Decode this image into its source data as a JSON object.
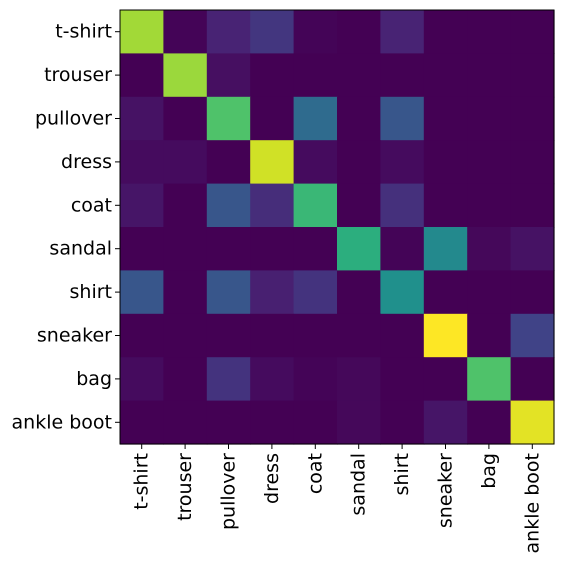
{
  "chart_data": {
    "type": "heatmap",
    "title": "",
    "xlabel": "",
    "ylabel": "",
    "colormap": "viridis",
    "value_range": [
      0,
      1
    ],
    "grid": false,
    "legend": "none",
    "x_categories": [
      "t-shirt",
      "trouser",
      "pullover",
      "dress",
      "coat",
      "sandal",
      "shirt",
      "sneaker",
      "bag",
      "ankle boot"
    ],
    "y_categories": [
      "t-shirt",
      "trouser",
      "pullover",
      "dress",
      "coat",
      "sandal",
      "shirt",
      "sneaker",
      "bag",
      "ankle boot"
    ],
    "values": [
      [
        0.86,
        0.01,
        0.1,
        0.16,
        0.01,
        0.0,
        0.1,
        0.0,
        0.0,
        0.0
      ],
      [
        0.0,
        0.85,
        0.04,
        0.0,
        0.0,
        0.0,
        0.0,
        0.0,
        0.0,
        0.0
      ],
      [
        0.05,
        0.0,
        0.72,
        0.0,
        0.35,
        0.0,
        0.27,
        0.0,
        0.0,
        0.0
      ],
      [
        0.03,
        0.03,
        0.0,
        0.93,
        0.03,
        0.0,
        0.03,
        0.0,
        0.0,
        0.0
      ],
      [
        0.06,
        0.0,
        0.27,
        0.13,
        0.67,
        0.0,
        0.14,
        0.0,
        0.0,
        0.0
      ],
      [
        0.0,
        0.0,
        0.0,
        0.0,
        0.0,
        0.63,
        0.01,
        0.47,
        0.02,
        0.05
      ],
      [
        0.27,
        0.0,
        0.27,
        0.09,
        0.15,
        0.0,
        0.5,
        0.0,
        0.0,
        0.0
      ],
      [
        0.0,
        0.0,
        0.0,
        0.0,
        0.0,
        0.0,
        0.0,
        1.0,
        0.0,
        0.2
      ],
      [
        0.03,
        0.0,
        0.15,
        0.03,
        0.01,
        0.02,
        0.0,
        0.0,
        0.72,
        0.0
      ],
      [
        0.0,
        0.0,
        0.0,
        0.0,
        0.0,
        0.02,
        0.0,
        0.06,
        0.0,
        0.96
      ]
    ]
  }
}
